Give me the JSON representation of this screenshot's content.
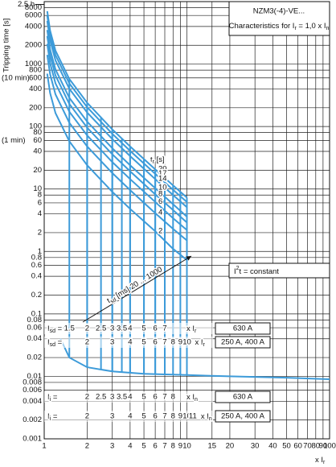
{
  "chart_data": {
    "type": "line",
    "title": "NZM3(-4)-VE...",
    "subtitle": [
      "Characteristics for I",
      "r",
      " = 1,0 x I",
      "n"
    ],
    "y_label": "Tripping time [s]",
    "x_label": [
      "x I",
      "r"
    ],
    "log_x": true,
    "log_y": true,
    "grid": true,
    "xlim": [
      1,
      100
    ],
    "ylim": [
      0.001,
      10000
    ],
    "xticks": [
      1,
      2,
      3,
      4,
      5,
      6,
      7,
      8,
      9,
      10,
      15,
      20,
      30,
      40,
      50,
      60,
      70,
      80,
      90,
      100
    ],
    "yticks": [
      8000,
      6000,
      4000,
      2000,
      1000,
      800,
      600,
      400,
      200,
      100,
      80,
      60,
      40,
      20,
      10,
      8,
      6,
      4,
      2,
      1,
      0.8,
      0.6,
      0.4,
      0.2,
      0.1,
      0.08,
      0.06,
      0.04,
      0.02,
      0.01,
      0.008,
      0.006,
      0.004,
      0.002,
      0.001
    ],
    "y_marks": [
      {
        "value": 9000,
        "label": "2.5 h"
      },
      {
        "value": 600,
        "label": "(10 min)"
      },
      {
        "value": 60,
        "label": "(1 min)"
      }
    ],
    "legend_title": [
      "t",
      "r",
      " [s]"
    ],
    "x": [
      1.05,
      1.1,
      1.2,
      1.5,
      2,
      3,
      4,
      6,
      8,
      10
    ],
    "series": [
      {
        "name": "20",
        "color": "#3d9bd9",
        "values": [
          7024,
          3429,
          1636,
          576,
          240,
          90,
          48,
          20.6,
          11.4,
          7.3
        ]
      },
      {
        "name": "17",
        "color": "#3d9bd9",
        "values": [
          5971,
          2914,
          1391,
          490,
          204,
          76.5,
          40.8,
          17.5,
          9.7,
          6.2
        ]
      },
      {
        "name": "14",
        "color": "#3d9bd9",
        "values": [
          4917,
          2400,
          1145,
          403,
          168,
          63,
          33.6,
          14.4,
          8.0,
          5.1
        ]
      },
      {
        "name": "10",
        "color": "#3d9bd9",
        "values": [
          3512,
          1714,
          818,
          288,
          120,
          45,
          24,
          10.3,
          5.7,
          3.6
        ]
      },
      {
        "name": "8",
        "color": "#3d9bd9",
        "values": [
          2810,
          1371,
          655,
          230,
          96,
          36,
          19.2,
          8.2,
          4.6,
          2.9
        ]
      },
      {
        "name": "6",
        "color": "#3d9bd9",
        "values": [
          2107,
          1028,
          491,
          173,
          72,
          27,
          14.4,
          6.2,
          3.4,
          2.2
        ]
      },
      {
        "name": "4",
        "color": "#3d9bd9",
        "values": [
          1405,
          686,
          327,
          115,
          48,
          18,
          9.6,
          4.1,
          2.3,
          1.5
        ]
      },
      {
        "name": "2",
        "color": "#3d9bd9",
        "values": [
          702,
          343,
          164,
          58,
          24,
          9,
          4.8,
          2.1,
          1.1,
          0.73
        ]
      }
    ],
    "tail_curve": {
      "color": "#3d9bd9",
      "x": [
        1.3,
        1.5,
        2,
        3,
        5,
        10,
        20,
        50,
        100
      ],
      "values": [
        0.04,
        0.02,
        0.014,
        0.012,
        0.011,
        0.0105,
        0.01,
        0.0095,
        0.009
      ]
    },
    "i2t_label": [
      "I",
      "2",
      "t = constant"
    ],
    "tsd_label": [
      "t",
      "sd",
      " [ms]   20 ... 1000"
    ],
    "setting_rows": [
      {
        "label": [
          "I",
          "sd",
          " ="
        ],
        "values": [
          1.5,
          2,
          2.5,
          3,
          3.5,
          4,
          5,
          6,
          7
        ],
        "unit": [
          "x I",
          "r"
        ],
        "rating": "630 A"
      },
      {
        "label": [
          "I",
          "sd",
          " ="
        ],
        "values": [
          2,
          3,
          4,
          5,
          6,
          7,
          8,
          9,
          10
        ],
        "unit": [
          "x I",
          "r"
        ],
        "rating": "250 A, 400 A"
      },
      {
        "label": [
          "I",
          "i",
          " ="
        ],
        "values": [
          2,
          2.5,
          3,
          3.5,
          4,
          5,
          6,
          7,
          8
        ],
        "unit": [
          "x I",
          "n"
        ],
        "rating": "630 A"
      },
      {
        "label": [
          "I",
          "i",
          " ="
        ],
        "values": [
          2,
          3,
          4,
          5,
          6,
          7,
          8,
          9,
          10,
          11
        ],
        "unit": [
          "x I",
          "n"
        ],
        "rating": "250 A, 400 A"
      }
    ]
  }
}
